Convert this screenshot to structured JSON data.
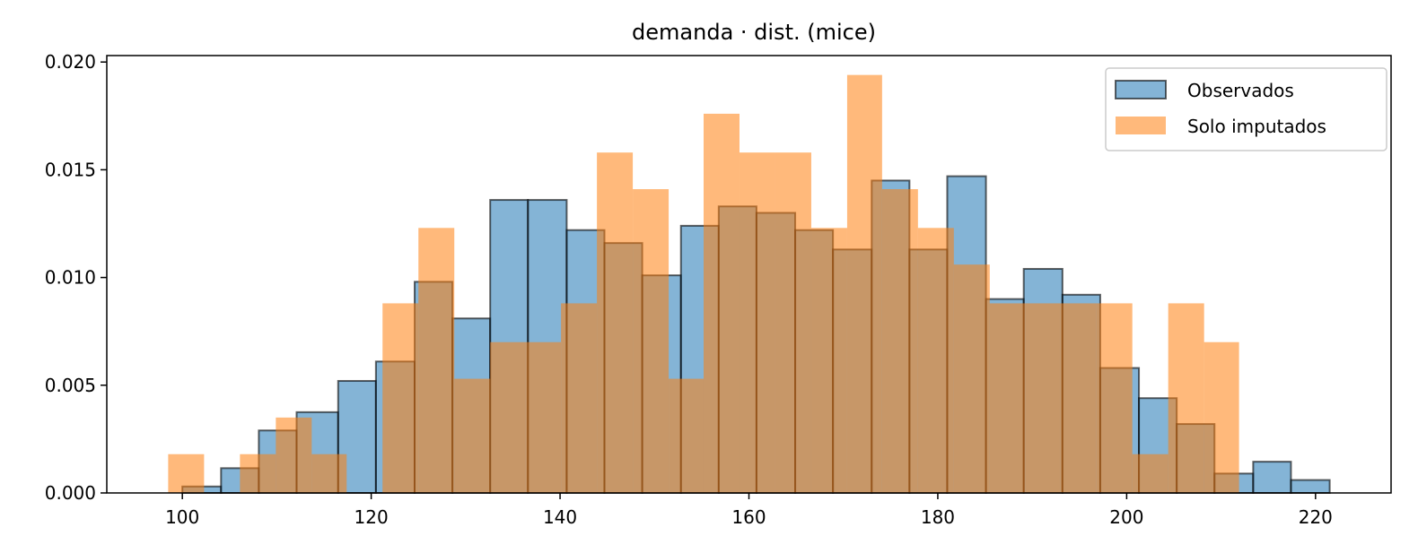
{
  "chart_data": {
    "type": "bar",
    "title": "demanda · dist. (mice)",
    "xlabel": "",
    "ylabel": "",
    "xlim": [
      92,
      228
    ],
    "ylim": [
      0,
      0.0203
    ],
    "xticks": [
      100,
      120,
      140,
      160,
      180,
      200,
      220
    ],
    "yticks": [
      0.0,
      0.005,
      0.01,
      0.015,
      0.02
    ],
    "grid": false,
    "legend_position": "top-right",
    "series": [
      {
        "name": "Observados",
        "color": "#1f77b4",
        "edge_color": "#000000",
        "opacity": 0.55,
        "bins": [
          [
            100.0,
            104.1,
            0.0003
          ],
          [
            104.1,
            108.1,
            0.00115
          ],
          [
            108.1,
            112.1,
            0.0029
          ],
          [
            112.1,
            116.5,
            0.00375
          ],
          [
            116.5,
            120.5,
            0.0052
          ],
          [
            120.5,
            124.6,
            0.0061
          ],
          [
            124.6,
            128.6,
            0.0098
          ],
          [
            128.6,
            132.6,
            0.0081
          ],
          [
            132.6,
            136.6,
            0.0136
          ],
          [
            136.6,
            140.7,
            0.0136
          ],
          [
            140.7,
            144.7,
            0.0122
          ],
          [
            144.7,
            148.7,
            0.0116
          ],
          [
            148.7,
            152.8,
            0.0101
          ],
          [
            152.8,
            156.8,
            0.0124
          ],
          [
            156.8,
            160.8,
            0.0133
          ],
          [
            160.8,
            164.9,
            0.013
          ],
          [
            164.9,
            168.9,
            0.0122
          ],
          [
            168.9,
            173.0,
            0.0113
          ],
          [
            173.0,
            177.0,
            0.0145
          ],
          [
            177.0,
            181.0,
            0.0113
          ],
          [
            181.0,
            185.1,
            0.0147
          ],
          [
            185.1,
            189.1,
            0.009
          ],
          [
            189.1,
            193.2,
            0.0104
          ],
          [
            193.2,
            197.2,
            0.0092
          ],
          [
            197.2,
            201.3,
            0.0058
          ],
          [
            201.3,
            205.3,
            0.0044
          ],
          [
            205.3,
            209.3,
            0.0032
          ],
          [
            209.3,
            213.4,
            0.0009
          ],
          [
            213.4,
            217.4,
            0.00145
          ],
          [
            217.4,
            221.5,
            0.0006
          ]
        ]
      },
      {
        "name": "Solo imputados",
        "color": "#ff7f0e",
        "opacity": 0.55,
        "bins": [
          [
            98.5,
            102.3,
            0.0018
          ],
          [
            102.3,
            106.1,
            0.0
          ],
          [
            106.1,
            109.9,
            0.0018
          ],
          [
            109.9,
            113.7,
            0.0035
          ],
          [
            113.7,
            117.4,
            0.0018
          ],
          [
            117.4,
            121.2,
            0.0
          ],
          [
            121.2,
            125.0,
            0.0088
          ],
          [
            125.0,
            128.8,
            0.0123
          ],
          [
            128.8,
            132.6,
            0.0053
          ],
          [
            132.6,
            136.3,
            0.007
          ],
          [
            136.3,
            140.1,
            0.007
          ],
          [
            140.1,
            143.9,
            0.0088
          ],
          [
            143.9,
            147.7,
            0.0158
          ],
          [
            147.7,
            151.5,
            0.0141
          ],
          [
            151.5,
            155.2,
            0.0053
          ],
          [
            155.2,
            159.0,
            0.0176
          ],
          [
            159.0,
            162.8,
            0.0158
          ],
          [
            162.8,
            166.6,
            0.0158
          ],
          [
            166.6,
            170.4,
            0.0123
          ],
          [
            170.4,
            174.1,
            0.0194
          ],
          [
            174.1,
            177.9,
            0.0141
          ],
          [
            177.9,
            181.7,
            0.0123
          ],
          [
            181.7,
            185.5,
            0.0106
          ],
          [
            185.5,
            189.3,
            0.0088
          ],
          [
            189.3,
            193.0,
            0.0088
          ],
          [
            193.0,
            196.8,
            0.0088
          ],
          [
            196.8,
            200.6,
            0.0088
          ],
          [
            200.6,
            204.4,
            0.0018
          ],
          [
            204.4,
            208.2,
            0.0088
          ],
          [
            208.2,
            211.9,
            0.007
          ]
        ]
      }
    ]
  }
}
